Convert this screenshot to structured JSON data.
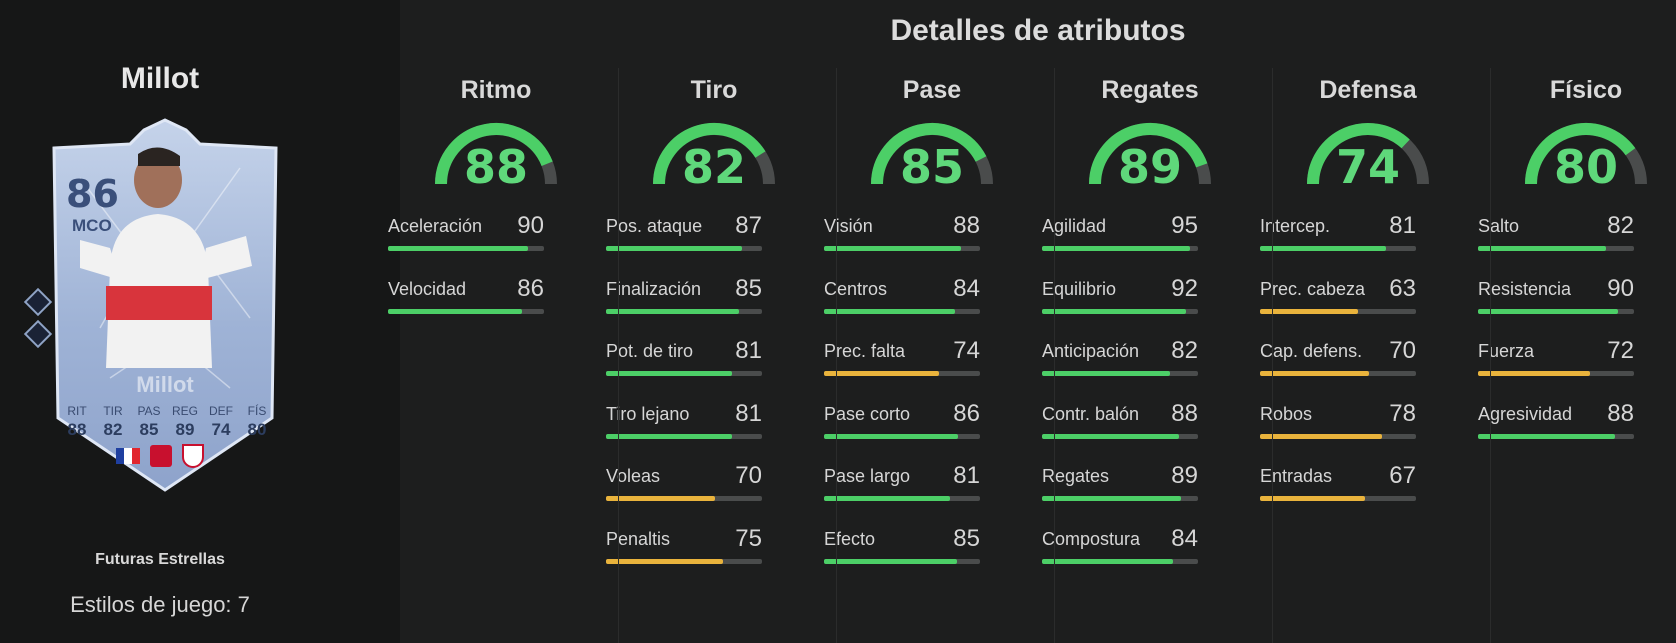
{
  "title": "Detalles de atributos",
  "player": {
    "name": "Millot",
    "card_rating": "86",
    "card_position": "MCO",
    "card_name": "Millot",
    "card_type": "Futuras Estrellas",
    "playstyles_label": "Estilos de juego: 7",
    "card_stats": [
      {
        "label": "RIT",
        "value": "88"
      },
      {
        "label": "TIR",
        "value": "82"
      },
      {
        "label": "PAS",
        "value": "85"
      },
      {
        "label": "REG",
        "value": "89"
      },
      {
        "label": "DEF",
        "value": "74"
      },
      {
        "label": "FÍS",
        "value": "80"
      }
    ]
  },
  "colors": {
    "high": "#4ccf67",
    "mid": "#e9b33c",
    "track": "#4a4c4c"
  },
  "categories": [
    {
      "name": "Ritmo",
      "value": "88",
      "attributes": [
        {
          "label": "Aceleración",
          "value": "90"
        },
        {
          "label": "Velocidad",
          "value": "86"
        }
      ]
    },
    {
      "name": "Tiro",
      "value": "82",
      "attributes": [
        {
          "label": "Pos. ataque",
          "value": "87"
        },
        {
          "label": "Finalización",
          "value": "85"
        },
        {
          "label": "Pot. de tiro",
          "value": "81"
        },
        {
          "label": "Tiro lejano",
          "value": "81"
        },
        {
          "label": "Voleas",
          "value": "70"
        },
        {
          "label": "Penaltis",
          "value": "75"
        }
      ]
    },
    {
      "name": "Pase",
      "value": "85",
      "attributes": [
        {
          "label": "Visión",
          "value": "88"
        },
        {
          "label": "Centros",
          "value": "84"
        },
        {
          "label": "Prec. falta",
          "value": "74"
        },
        {
          "label": "Pase corto",
          "value": "86"
        },
        {
          "label": "Pase largo",
          "value": "81"
        },
        {
          "label": "Efecto",
          "value": "85"
        }
      ]
    },
    {
      "name": "Regates",
      "value": "89",
      "attributes": [
        {
          "label": "Agilidad",
          "value": "95"
        },
        {
          "label": "Equilibrio",
          "value": "92"
        },
        {
          "label": "Anticipación",
          "value": "82"
        },
        {
          "label": "Contr. balón",
          "value": "88"
        },
        {
          "label": "Regates",
          "value": "89"
        },
        {
          "label": "Compostura",
          "value": "84"
        }
      ]
    },
    {
      "name": "Defensa",
      "value": "74",
      "attributes": [
        {
          "label": "Intercep.",
          "value": "81"
        },
        {
          "label": "Prec. cabeza",
          "value": "63"
        },
        {
          "label": "Cap. defens.",
          "value": "70"
        },
        {
          "label": "Robos",
          "value": "78"
        },
        {
          "label": "Entradas",
          "value": "67"
        }
      ]
    },
    {
      "name": "Físico",
      "value": "80",
      "attributes": [
        {
          "label": "Salto",
          "value": "82"
        },
        {
          "label": "Resistencia",
          "value": "90"
        },
        {
          "label": "Fuerza",
          "value": "72"
        },
        {
          "label": "Agresividad",
          "value": "88"
        }
      ]
    }
  ]
}
